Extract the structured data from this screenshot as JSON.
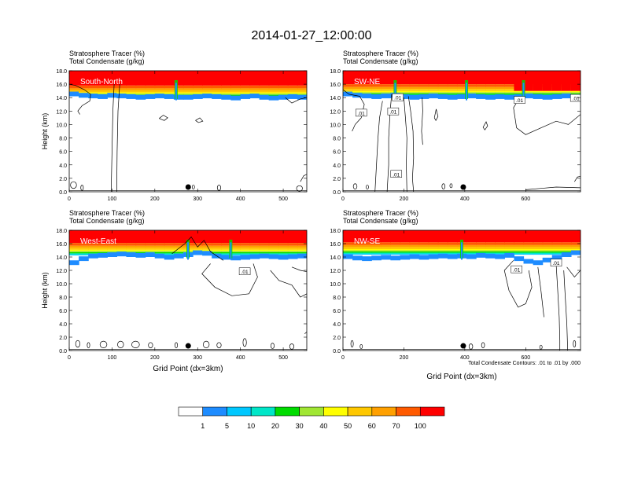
{
  "figure": {
    "title": "2014-01-27_12:00:00",
    "contour_note": "Total Condensate Contours: .01 to .01 by .000"
  },
  "colorbar": {
    "colors": [
      "#ffffff",
      "#1e8cff",
      "#00c8ff",
      "#00e6c8",
      "#00dc00",
      "#a0e632",
      "#ffff00",
      "#ffc800",
      "#ffa000",
      "#ff5a00",
      "#ff0000"
    ],
    "labels": [
      "1",
      "5",
      "10",
      "20",
      "30",
      "40",
      "50",
      "60",
      "70",
      "100"
    ]
  },
  "panels": [
    {
      "id": "south-north",
      "section_label": "South-North",
      "title_line1": "Stratosphere Tracer   (%)",
      "title_line2": "Total Condensate   (g/kg)",
      "ylabel": "Height (km)",
      "xlabel": "",
      "xmax": 555,
      "xticks": [
        0,
        100,
        200,
        300,
        400,
        500
      ],
      "yticks": [
        "0.0",
        "2.0",
        "4.0",
        "6.0",
        "8.0",
        "10.0",
        "12.0",
        "14.0",
        "16.0",
        "18.0"
      ],
      "marker_x": 278,
      "contour_labels": [],
      "layer": {
        "base": [
          14.2,
          14.0,
          13.9,
          13.8,
          14.0,
          13.9,
          13.8,
          13.7,
          13.8,
          13.9,
          13.8,
          13.7,
          13.7,
          13.8,
          13.9,
          13.8,
          13.7,
          13.6,
          13.8,
          13.9,
          13.7,
          13.6,
          13.7,
          13.8,
          13.7
        ],
        "top": 15.8,
        "notches": [
          0.45
        ],
        "dips": []
      },
      "contours": [
        [
          [
            0,
            16.0
          ],
          [
            15,
            15.8
          ],
          [
            35,
            15.2
          ],
          [
            50,
            14.5
          ],
          [
            48,
            13.5
          ],
          [
            30,
            12.8
          ],
          [
            20,
            12.0
          ],
          [
            25,
            11.5
          ]
        ],
        [
          [
            105,
            16.0
          ],
          [
            102,
            12
          ],
          [
            100,
            6
          ],
          [
            98,
            0
          ]
        ],
        [
          [
            118,
            16.0
          ],
          [
            114,
            12
          ],
          [
            112,
            6
          ],
          [
            111,
            0
          ]
        ],
        [
          [
            210,
            10.9
          ],
          [
            220,
            11.4
          ],
          [
            230,
            11.0
          ],
          [
            222,
            10.6
          ],
          [
            210,
            10.9
          ]
        ],
        [
          [
            295,
            10.6
          ],
          [
            305,
            11.0
          ],
          [
            312,
            10.5
          ],
          [
            302,
            10.3
          ],
          [
            295,
            10.6
          ]
        ],
        [
          [
            505,
            14.0
          ],
          [
            520,
            13.2
          ],
          [
            540,
            13.8
          ],
          [
            555,
            14.0
          ]
        ],
        [
          [
            540,
            1.5
          ],
          [
            548,
            2.4
          ],
          [
            555,
            2.6
          ]
        ]
      ],
      "blobs": [
        [
          10,
          1.0,
          14,
          0.5
        ],
        [
          30,
          0.6,
          6,
          0.4
        ],
        [
          290,
          0.7,
          4,
          0.3
        ],
        [
          350,
          0.6,
          8,
          0.4
        ],
        [
          538,
          0.5,
          14,
          0.4
        ]
      ]
    },
    {
      "id": "sw-ne",
      "section_label": "SW-NE",
      "title_line1": "Stratosphere Tracer   (%)",
      "title_line2": "Total Condensate   (g/kg)",
      "ylabel": "",
      "xlabel": "",
      "xmax": 780,
      "xticks": [
        0,
        200,
        400,
        600
      ],
      "yticks": [
        "0.0",
        "2.0",
        "4.0",
        "6.0",
        "8.0",
        "10.0",
        "12.0",
        "14.0",
        "16.0",
        "18.0"
      ],
      "marker_x": 395,
      "contour_labels": [
        [
          60,
          11.7,
          ".01"
        ],
        [
          165,
          11.9,
          ".01"
        ],
        [
          180,
          14.0,
          ".01"
        ],
        [
          580,
          13.6,
          ".01"
        ],
        [
          765,
          13.9,
          ".01"
        ],
        [
          175,
          2.6,
          ".01"
        ]
      ],
      "layer": {
        "base": [
          14.2,
          14.0,
          13.9,
          13.8,
          13.9,
          14.0,
          13.8,
          13.7,
          13.8,
          13.9,
          13.8,
          13.7,
          13.8,
          13.9,
          13.8,
          13.7,
          13.8,
          13.7,
          13.8,
          13.9,
          13.8,
          13.7,
          13.8,
          13.9,
          13.8
        ],
        "top": 16.0,
        "notches": [
          0.22,
          0.52,
          0.76
        ],
        "dips": [
          [
            0.72,
            1.0,
            15.0
          ]
        ]
      },
      "contours": [
        [
          [
            0,
            15.2
          ],
          [
            20,
            14.5
          ],
          [
            55,
            14.2
          ],
          [
            70,
            13.0
          ],
          [
            60,
            11.0
          ],
          [
            40,
            10.0
          ],
          [
            30,
            9.0
          ]
        ],
        [
          [
            130,
            13.5
          ],
          [
            120,
            11
          ],
          [
            115,
            8
          ],
          [
            110,
            4
          ],
          [
            105,
            0
          ]
        ],
        [
          [
            160,
            14.5
          ],
          [
            155,
            12
          ],
          [
            150,
            8
          ],
          [
            150,
            4
          ],
          [
            145,
            0
          ]
        ],
        [
          [
            200,
            14.0
          ],
          [
            205,
            11
          ],
          [
            210,
            8
          ],
          [
            208,
            4
          ],
          [
            210,
            0
          ]
        ],
        [
          [
            215,
            14.2
          ],
          [
            222,
            12
          ],
          [
            230,
            9
          ],
          [
            232,
            5
          ],
          [
            228,
            2
          ],
          [
            232,
            0
          ]
        ],
        [
          [
            260,
            14.0
          ],
          [
            262,
            12
          ],
          [
            258,
            9
          ],
          [
            262,
            7
          ]
        ],
        [
          [
            300,
            11.0
          ],
          [
            306,
            12.3
          ],
          [
            312,
            11.2
          ],
          [
            305,
            10.6
          ],
          [
            300,
            11.0
          ]
        ],
        [
          [
            460,
            9.6
          ],
          [
            470,
            10.4
          ],
          [
            475,
            9.8
          ],
          [
            466,
            9.2
          ],
          [
            460,
            9.6
          ]
        ],
        [
          [
            580,
            14.0
          ],
          [
            560,
            12.5
          ],
          [
            570,
            9.5
          ],
          [
            600,
            8.5
          ],
          [
            650,
            9.5
          ],
          [
            700,
            10.5
          ],
          [
            740,
            10.0
          ],
          [
            780,
            11.5
          ]
        ],
        [
          [
            600,
            0.3
          ],
          [
            650,
            0.5
          ],
          [
            700,
            0.7
          ],
          [
            780,
            0.6
          ]
        ],
        [
          [
            760,
            1.5
          ],
          [
            770,
            2.2
          ],
          [
            780,
            2.3
          ]
        ]
      ],
      "blobs": [
        [
          40,
          0.8,
          12,
          0.4
        ],
        [
          80,
          0.7,
          6,
          0.3
        ],
        [
          330,
          0.8,
          10,
          0.4
        ],
        [
          355,
          0.9,
          5,
          0.3
        ]
      ]
    },
    {
      "id": "west-east",
      "section_label": "West-East",
      "title_line1": "Stratosphere Tracer   (%)",
      "title_line2": "Total Condensate   (g/kg)",
      "ylabel": "Height (km)",
      "xlabel": "Grid Point (dx=3km)",
      "xmax": 555,
      "xticks": [
        0,
        100,
        200,
        300,
        400,
        500
      ],
      "yticks": [
        "0.0",
        "2.0",
        "4.0",
        "6.0",
        "8.0",
        "10.0",
        "12.0",
        "14.0",
        "16.0",
        "18.0"
      ],
      "marker_x": 278,
      "contour_labels": [
        [
          410,
          11.8,
          ".01"
        ]
      ],
      "layer": {
        "base": [
          12.8,
          13.4,
          13.8,
          13.9,
          14.0,
          14.1,
          14.0,
          13.9,
          14.0,
          13.8,
          13.6,
          13.8,
          14.0,
          14.3,
          14.2,
          13.8,
          13.6,
          13.5,
          13.6,
          13.7,
          13.8,
          13.7,
          13.6,
          13.7,
          13.8
        ],
        "top": 16.1,
        "notches": [
          0.5,
          0.68
        ],
        "dips": []
      },
      "contours": [
        [
          [
            240,
            14.5
          ],
          [
            270,
            16.0
          ],
          [
            285,
            17.0
          ],
          [
            300,
            15.5
          ],
          [
            315,
            16.5
          ],
          [
            330,
            14.8
          ],
          [
            360,
            13.5
          ]
        ],
        [
          [
            330,
            13.0
          ],
          [
            310,
            11.5
          ],
          [
            340,
            9.5
          ],
          [
            380,
            8.2
          ],
          [
            420,
            8.5
          ],
          [
            440,
            11.0
          ],
          [
            430,
            13.0
          ]
        ],
        [
          [
            470,
            12.0
          ],
          [
            490,
            10.5
          ],
          [
            520,
            9.8
          ],
          [
            540,
            8.0
          ],
          [
            555,
            8.5
          ]
        ],
        [
          [
            520,
            12.5
          ],
          [
            540,
            12.0
          ],
          [
            555,
            11.8
          ]
        ],
        [
          [
            550,
            2.5
          ],
          [
            555,
            2.8
          ]
        ]
      ],
      "blobs": [
        [
          20,
          1.0,
          10,
          0.5
        ],
        [
          45,
          0.8,
          6,
          0.4
        ],
        [
          80,
          0.9,
          16,
          0.5
        ],
        [
          120,
          0.9,
          14,
          0.5
        ],
        [
          155,
          0.9,
          18,
          0.5
        ],
        [
          190,
          0.8,
          10,
          0.4
        ],
        [
          250,
          0.8,
          6,
          0.4
        ],
        [
          320,
          0.9,
          14,
          0.5
        ],
        [
          350,
          0.8,
          10,
          0.4
        ],
        [
          410,
          1.2,
          8,
          0.6
        ],
        [
          475,
          0.7,
          8,
          0.4
        ],
        [
          520,
          0.6,
          10,
          0.4
        ]
      ]
    },
    {
      "id": "nw-se",
      "section_label": "NW-SE",
      "title_line1": "Stratosphere Tracer   (%)",
      "title_line2": "Total Condensate   (g/kg)",
      "ylabel": "",
      "xlabel": "Grid Point (dx=3km)",
      "xmax": 780,
      "xticks": [
        0,
        200,
        400,
        600
      ],
      "yticks": [
        "0.0",
        "2.0",
        "4.0",
        "6.0",
        "8.0",
        "10.0",
        "12.0",
        "14.0",
        "16.0",
        "18.0"
      ],
      "marker_x": 395,
      "contour_labels": [
        [
          570,
          12.1,
          ".01"
        ],
        [
          700,
          13.1,
          ".01"
        ]
      ],
      "layer": {
        "base": [
          13.7,
          13.5,
          13.4,
          13.5,
          13.6,
          13.5,
          13.6,
          13.7,
          13.6,
          13.7,
          13.8,
          13.7,
          13.8,
          13.7,
          13.9,
          13.8,
          13.7,
          13.9,
          13.4,
          13.0,
          12.8,
          13.2,
          13.6,
          14.0,
          14.3
        ],
        "top": 16.2,
        "notches": [
          0.5
        ],
        "dips": []
      },
      "contours": [
        [
          [
            560,
            13.5
          ],
          [
            530,
            12.0
          ],
          [
            545,
            9.0
          ],
          [
            575,
            6.5
          ],
          [
            600,
            7.0
          ],
          [
            620,
            9.5
          ],
          [
            610,
            12.0
          ]
        ],
        [
          [
            640,
            12.5
          ],
          [
            650,
            9.0
          ],
          [
            660,
            5.0
          ]
        ],
        [
          [
            700,
            13.0
          ],
          [
            705,
            9.0
          ],
          [
            710,
            5.0
          ],
          [
            712,
            1.5
          ],
          [
            712,
            0
          ]
        ],
        [
          [
            725,
            12.0
          ],
          [
            730,
            8.0
          ],
          [
            735,
            4.0
          ],
          [
            738,
            0
          ]
        ],
        [
          [
            735,
            12.5
          ],
          [
            760,
            11.0
          ],
          [
            780,
            12.0
          ]
        ]
      ],
      "blobs": [
        [
          30,
          1.0,
          8,
          0.5
        ],
        [
          60,
          0.6,
          6,
          0.3
        ],
        [
          420,
          0.6,
          12,
          0.4
        ],
        [
          460,
          0.8,
          10,
          0.4
        ],
        [
          650,
          0.5,
          8,
          0.3
        ],
        [
          760,
          1.0,
          8,
          0.5
        ]
      ]
    }
  ]
}
